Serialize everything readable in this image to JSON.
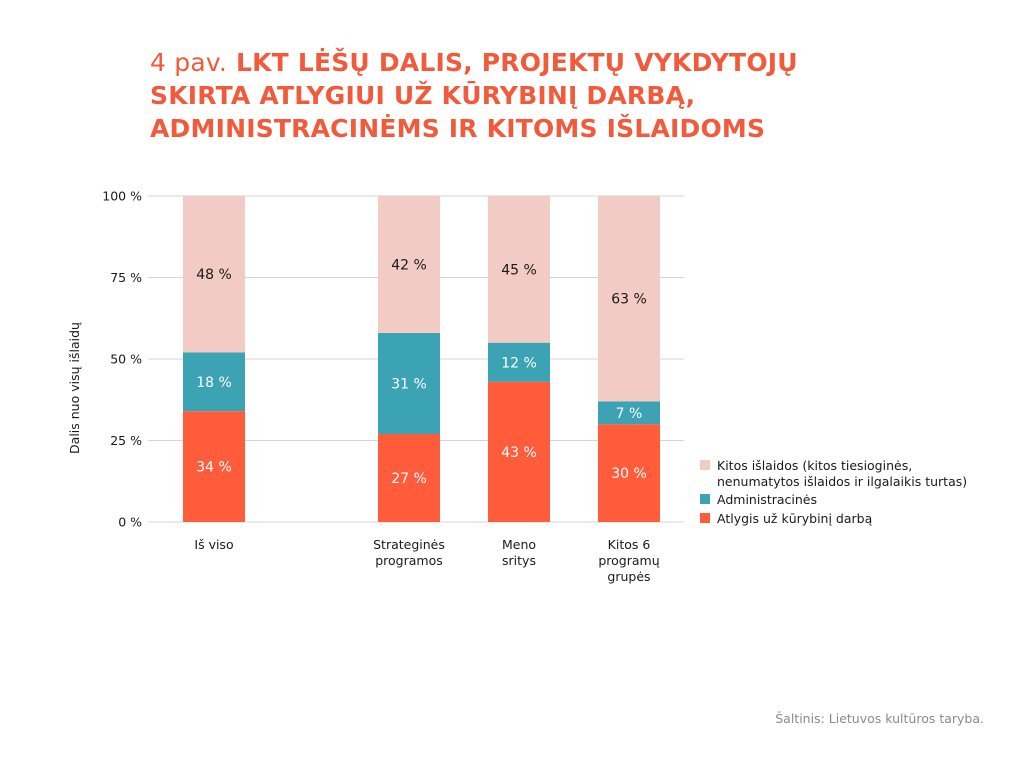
{
  "title": {
    "prefix": "4 pav.",
    "lines": [
      "LKT LĖŠŲ DALIS, PROJEKTŲ VYKDYTOJŲ",
      "SKIRTA ATLYGIUI UŽ KŪRYBINĮ DARBĄ,",
      "ADMINISTRACINĖMS IR KITOMS IŠLAIDOMS"
    ]
  },
  "source": "Šaltinis: Lietuvos kultūros taryba.",
  "colors": {
    "atlygis": "#ff5c3b",
    "administracines": "#3ba3b3",
    "kitos": "#f2ccc4",
    "grid": "#d4d4d4",
    "title": "#f15a3a"
  },
  "chart_data": {
    "type": "bar",
    "stacked": true,
    "ylabel": "Dalis nuo visų išlaidų",
    "ylim": [
      0,
      100
    ],
    "y_ticks": [
      0,
      25,
      50,
      75,
      100
    ],
    "y_tick_labels": [
      "0 %",
      "25 %",
      "50 %",
      "75 %",
      "100 %"
    ],
    "categories": [
      [
        "Iš viso"
      ],
      [
        "Strateginės",
        "programos"
      ],
      [
        "Meno",
        "sritys"
      ],
      [
        "Kitos 6",
        "programų",
        "grupės"
      ]
    ],
    "series": [
      {
        "key": "atlygis",
        "name": "Atlygis už kūrybinį darbą",
        "values": [
          34,
          27,
          43,
          30
        ],
        "labels": [
          "34 %",
          "27 %",
          "43 %",
          "30 %"
        ]
      },
      {
        "key": "administracines",
        "name": "Administracinės",
        "values": [
          18,
          31,
          12,
          7
        ],
        "labels": [
          "18 %",
          "31 %",
          "12 %",
          "7 %"
        ]
      },
      {
        "key": "kitos",
        "name": "Kitos išlaidos (kitos tiesioginės, nenumatytos išlaidos ir ilgalaikis turtas)",
        "name_lines": [
          "Kitos išlaidos (kitos tiesioginės,",
          "nenumatytos išlaidos ir ilgalaikis turtas)"
        ],
        "values": [
          48,
          42,
          45,
          63
        ],
        "labels": [
          "48 %",
          "42 %",
          "45 %",
          "63 %"
        ]
      }
    ],
    "legend_position": "right",
    "grid": true
  }
}
